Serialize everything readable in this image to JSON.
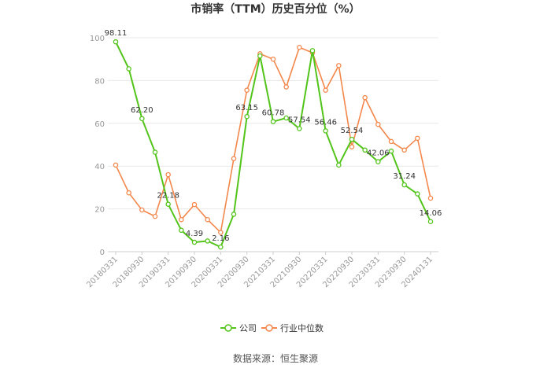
{
  "chart_data": {
    "type": "line",
    "title": "市销率（TTM）历史百分位（%）",
    "source": "数据来源：恒生聚源",
    "ylim": [
      0,
      100
    ],
    "yticks": [
      0,
      20,
      40,
      60,
      80,
      100
    ],
    "grid": true,
    "legend_position": "bottom-center",
    "x_tick_labels": [
      "20180331",
      "20180930",
      "20190331",
      "20190930",
      "20200331",
      "20200930",
      "20210331",
      "20210930",
      "20220331",
      "20220930",
      "20230331",
      "20230930",
      "20240131"
    ],
    "x": [
      "20180331",
      "20180630",
      "20180930",
      "20181231",
      "20190331",
      "20190630",
      "20190930",
      "20191231",
      "20200331",
      "20200630",
      "20200930",
      "20201231",
      "20210331",
      "20210630",
      "20210930",
      "20211231",
      "20220331",
      "20220630",
      "20220930",
      "20221231",
      "20230331",
      "20230630",
      "20230930",
      "20231231",
      "20240131"
    ],
    "series": [
      {
        "name": "公司",
        "color": "#52c41a",
        "values": [
          98.11,
          85.5,
          62.2,
          46.5,
          22.18,
          10.0,
          4.39,
          5.0,
          2.16,
          17.5,
          63.15,
          91.5,
          60.78,
          62.5,
          57.54,
          94.0,
          56.46,
          40.5,
          52.54,
          47.5,
          42.06,
          47.0,
          31.24,
          27.0,
          14.06
        ],
        "labels": {
          "0": "98.11",
          "2": "62.20",
          "4": "22.18",
          "6": "4.39",
          "8": "2.16",
          "10": "63.15",
          "12": "60.78",
          "14": "57.54",
          "16": "56.46",
          "18": "52.54",
          "20": "42.06",
          "22": "31.24",
          "24": "14.06"
        }
      },
      {
        "name": "行业中位数",
        "color": "#f4874b",
        "values": [
          40.5,
          27.5,
          19.5,
          16.5,
          36.0,
          15.0,
          22.0,
          15.0,
          9.0,
          43.5,
          75.5,
          92.5,
          90.0,
          77.0,
          95.5,
          93.0,
          75.5,
          87.0,
          49.0,
          72.0,
          59.5,
          51.5,
          47.5,
          53.0,
          25.0
        ]
      }
    ]
  }
}
